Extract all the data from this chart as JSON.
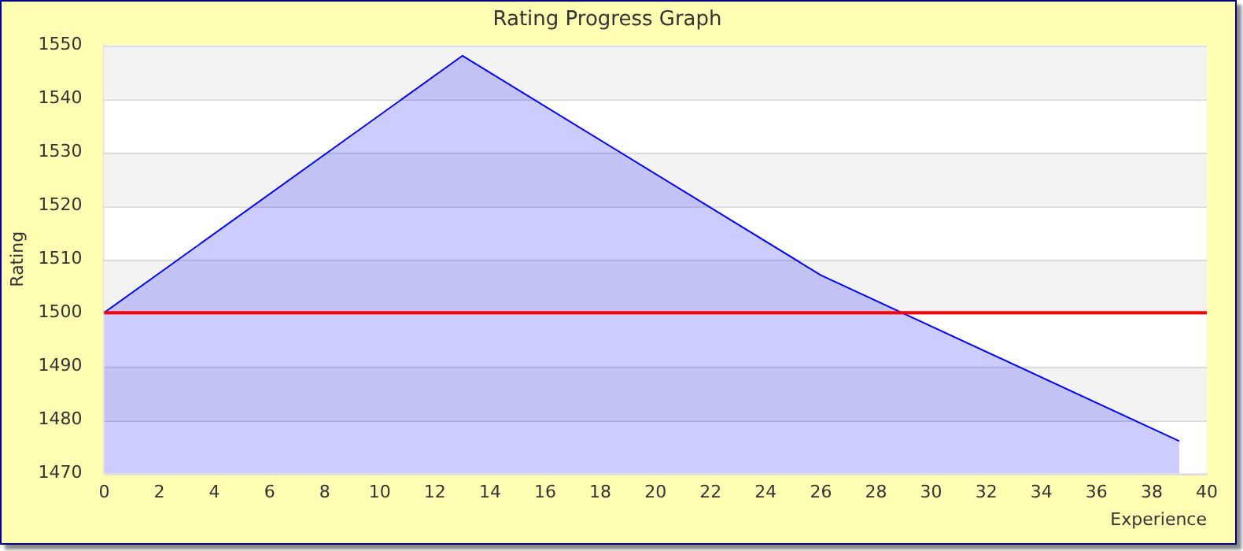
{
  "chart_data": {
    "type": "area",
    "title": "Rating Progress Graph",
    "xlabel": "Experience",
    "ylabel": "Rating",
    "x": [
      0,
      13,
      26,
      39
    ],
    "series": [
      {
        "color": "#0000ff",
        "values": [
          1500,
          1548,
          1507,
          1476
        ]
      }
    ],
    "xlim": [
      0,
      40
    ],
    "xticks": [
      0,
      2,
      4,
      6,
      8,
      10,
      12,
      14,
      16,
      18,
      20,
      22,
      24,
      26,
      28,
      30,
      32,
      34,
      36,
      38,
      40
    ],
    "ylim": [
      1470,
      1550
    ],
    "yticks": [
      1470,
      1480,
      1490,
      1500,
      1510,
      1520,
      1530,
      1540,
      1550
    ],
    "ref_lines": [
      {
        "axis": "y",
        "value": 1500,
        "color": "#ff0000"
      }
    ],
    "grid": "y",
    "legend": false,
    "marker": "none"
  }
}
